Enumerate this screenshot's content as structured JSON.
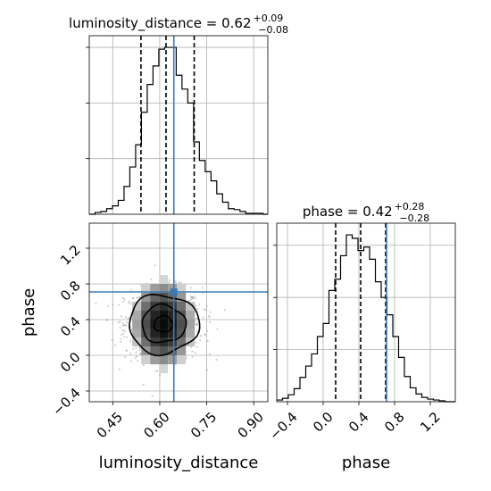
{
  "chart_data": {
    "type": "corner",
    "parameters": [
      "luminosity_distance",
      "phase"
    ],
    "titles": {
      "luminosity_distance": {
        "name": "luminosity_distance",
        "median": "0.62",
        "plus": "+0.09",
        "minus": "−0.08"
      },
      "phase": {
        "name": "phase",
        "median": "0.42",
        "plus": "+0.28",
        "minus": "−0.28"
      }
    },
    "truth": {
      "luminosity_distance": 0.645,
      "phase": 0.71
    },
    "quantiles": {
      "luminosity_distance": [
        0.54,
        0.62,
        0.71
      ],
      "phase": [
        0.14,
        0.42,
        0.7
      ]
    },
    "xlabels": [
      "luminosity_distance",
      "phase"
    ],
    "ylabel": "phase",
    "axes": {
      "luminosity_distance": {
        "range": [
          0.375,
          0.945
        ],
        "ticks": [
          "0.45",
          "0.60",
          "0.75",
          "0.90"
        ],
        "tick_values": [
          0.45,
          0.6,
          0.75,
          0.9
        ]
      },
      "phase": {
        "range": [
          -0.52,
          1.48
        ],
        "ticks": [
          "−0.4",
          "0.0",
          "0.4",
          "0.8",
          "1.2"
        ],
        "tick_values": [
          -0.4,
          0.0,
          0.4,
          0.8,
          1.2
        ]
      }
    },
    "hist_luminosity_distance": {
      "bin_edges": [
        0.375,
        0.3935,
        0.412,
        0.4305,
        0.449,
        0.4675,
        0.486,
        0.5045,
        0.523,
        0.5415,
        0.56,
        0.5785,
        0.597,
        0.6155,
        0.634,
        0.6525,
        0.671,
        0.6895,
        0.708,
        0.7265,
        0.745,
        0.7635,
        0.782,
        0.8005,
        0.819,
        0.8375,
        0.856,
        0.8745,
        0.893,
        0.9115,
        0.93,
        0.945
      ],
      "counts": [
        0,
        2,
        3,
        6,
        9,
        15,
        30,
        51,
        75,
        110,
        140,
        160,
        178,
        180,
        180,
        150,
        135,
        120,
        78,
        58,
        46,
        36,
        22,
        13,
        6,
        5,
        3,
        1,
        1,
        1,
        0
      ]
    },
    "hist_phase": {
      "bin_edges": [
        -0.52,
        -0.455,
        -0.39,
        -0.325,
        -0.26,
        -0.195,
        -0.13,
        -0.065,
        0.0,
        0.065,
        0.13,
        0.195,
        0.26,
        0.325,
        0.39,
        0.455,
        0.52,
        0.585,
        0.65,
        0.715,
        0.78,
        0.845,
        0.91,
        0.975,
        1.04,
        1.105,
        1.17,
        1.235,
        1.3,
        1.365,
        1.48
      ],
      "counts": [
        2,
        4,
        8,
        15,
        28,
        41,
        55,
        75,
        90,
        128,
        141,
        168,
        192,
        188,
        174,
        178,
        164,
        138,
        120,
        100,
        75,
        51,
        29,
        16,
        9,
        5,
        3,
        2,
        1,
        0
      ]
    },
    "contours_2d": {
      "center": [
        0.612,
        0.35
      ],
      "levels": [
        {
          "label": "inner",
          "rx": 0.03,
          "ry": 0.09
        },
        {
          "label": "middle",
          "rx": 0.07,
          "ry": 0.21
        },
        {
          "label": "outer",
          "rx": 0.112,
          "ry": 0.33
        }
      ]
    },
    "grid": true
  }
}
